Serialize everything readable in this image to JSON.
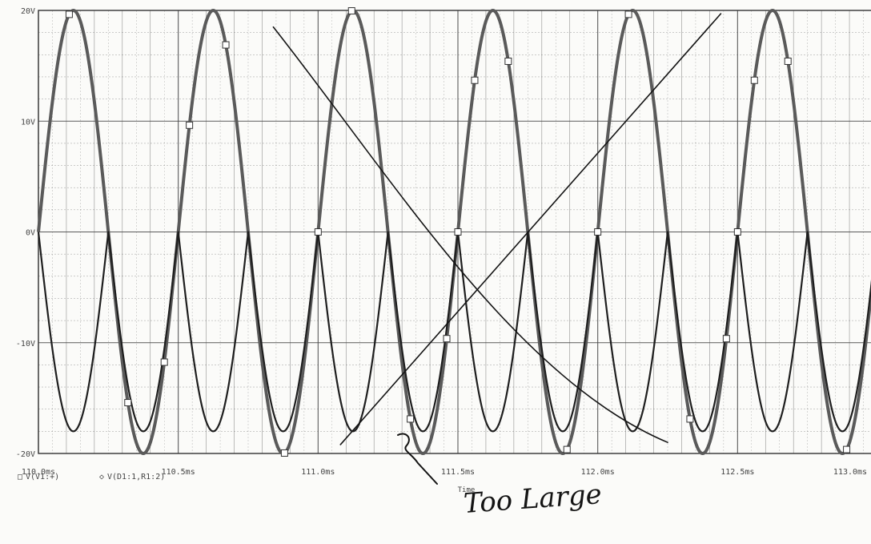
{
  "chart_data": {
    "type": "line",
    "xlim": [
      110.0,
      113.0
    ],
    "ylim": [
      -20,
      20
    ],
    "grid": true,
    "x_ticks": [
      {
        "value": 110.0,
        "label": "110.0ms"
      },
      {
        "value": 110.5,
        "label": "110.5ms"
      },
      {
        "value": 111.0,
        "label": "111.0ms"
      },
      {
        "value": 111.5,
        "label": "111.5ms"
      },
      {
        "value": 112.0,
        "label": "112.0ms"
      },
      {
        "value": 112.5,
        "label": "112.5ms"
      },
      {
        "value": 113.0,
        "label": "113.0ms"
      }
    ],
    "y_ticks": [
      {
        "value": 20,
        "label": "20V"
      },
      {
        "value": 10,
        "label": "10V"
      },
      {
        "value": 0,
        "label": "0V"
      },
      {
        "value": -10,
        "label": "-10V"
      },
      {
        "value": -20,
        "label": "-20V"
      }
    ],
    "xlabel": "Time",
    "legend": [
      {
        "marker": "□",
        "text": "V(V1:+)"
      },
      {
        "marker": "◇",
        "text": "V(D1:1,R1:2)"
      }
    ],
    "series": [
      {
        "name": "V(V1:+)",
        "kind": "sine",
        "amplitude": 20,
        "frequency_hz": 2000,
        "phase_zero_ms": 110.0,
        "markers_x": [
          110.11,
          110.32,
          110.45,
          110.54,
          110.67,
          110.88,
          111.12,
          111.33,
          111.46,
          111.56,
          111.68,
          111.89,
          112.11,
          112.33,
          112.46,
          112.56,
          112.68,
          112.89
        ]
      },
      {
        "name": "V(D1:1,R1:2)",
        "kind": "negative-half-rectified",
        "amplitude": 18,
        "frequency_hz": 2000,
        "phase_zero_ms": 110.0,
        "markers_x": [
          111.0,
          111.5,
          112.0,
          112.5
        ]
      }
    ],
    "annotations": [
      {
        "kind": "handwritten-line",
        "from": [
          111.08,
          -19.2
        ],
        "to": [
          112.44,
          19.7
        ]
      },
      {
        "kind": "handwritten-curve",
        "from": [
          110.84,
          18.5
        ],
        "to": [
          112.25,
          -19.0
        ]
      },
      {
        "kind": "handwritten-text",
        "text": "Too Large"
      }
    ],
    "colors": {
      "background": "#fbfbf9",
      "grid": "#4a4a4a",
      "trace1": "#5a5a5a",
      "trace2": "#1e1e1e",
      "ink": "#141414"
    }
  }
}
